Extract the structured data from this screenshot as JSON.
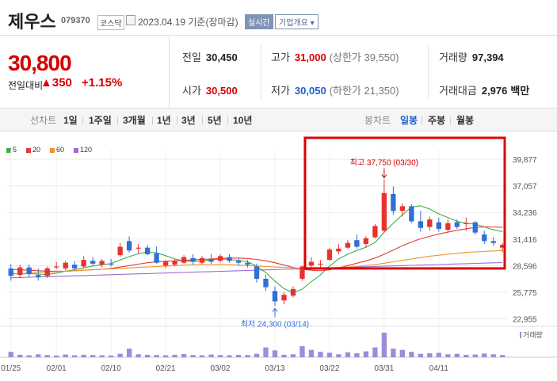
{
  "header": {
    "name": "제우스",
    "code": "079370",
    "market": "코스닥",
    "date_text": "2023.04.19 기준(장마감)",
    "realtime": "실시간",
    "company": "기업개요 ▾"
  },
  "price": {
    "current": "30,800",
    "diff_label": "전일대비",
    "diff": "▲350",
    "rate": "+1.15%"
  },
  "info": {
    "prev_label": "전일",
    "prev": "30,450",
    "high_label": "고가",
    "high": "31,000",
    "high_sub": "(상한가 39,550)",
    "vol_label": "거래량",
    "vol": "97,394",
    "open_label": "시가",
    "open": "30,500",
    "low_label": "저가",
    "low": "30,050",
    "low_sub": "(하한가 21,350)",
    "amt_label": "거래대금",
    "amt": "2,976",
    "amt_unit": "백만"
  },
  "tabs": {
    "line_label": "선차트",
    "d1": "1일",
    "w1": "1주일",
    "m3": "3개월",
    "y1": "1년",
    "y3": "3년",
    "y5": "5년",
    "y10": "10년",
    "candle_label": "봉차트",
    "daily": "일봉",
    "weekly": "주봉",
    "monthly": "월봉"
  },
  "chart_data": {
    "type": "candlestick",
    "legend": [
      {
        "label": "5",
        "color": "#3fae49"
      },
      {
        "label": "20",
        "color": "#e23b3b"
      },
      {
        "label": "60",
        "color": "#f0932b"
      },
      {
        "label": "120",
        "color": "#a06ad1"
      }
    ],
    "y_ticks": [
      39877,
      37057,
      34236,
      31416,
      28596,
      25775,
      22955
    ],
    "y_tick_labels": [
      "39,877",
      "37,057",
      "34,236",
      "31,416",
      "28,596",
      "25,775",
      "22,955"
    ],
    "ylim": [
      22400,
      40900
    ],
    "x_labels": [
      "01/25",
      "02/01",
      "02/10",
      "02/21",
      "03/02",
      "03/13",
      "03/22",
      "03/31",
      "04/11"
    ],
    "x_label_index": [
      0,
      5,
      11,
      17,
      23,
      29,
      35,
      41,
      47
    ],
    "volume_label": "거래량",
    "high_annotation": "최고 37,750 (03/30)",
    "low_annotation": "최저 24,300 (03/14)",
    "candles": [
      [
        28300,
        28750,
        27000,
        27500
      ],
      [
        27600,
        28700,
        27300,
        28400
      ],
      [
        28400,
        28700,
        27400,
        27700
      ],
      [
        27600,
        28300,
        27000,
        27400
      ],
      [
        27500,
        28500,
        27300,
        28300
      ],
      [
        28400,
        29000,
        28200,
        28500
      ],
      [
        28300,
        29100,
        28100,
        28900
      ],
      [
        28700,
        29100,
        28100,
        28300
      ],
      [
        28500,
        29600,
        28300,
        29200
      ],
      [
        29100,
        29500,
        28600,
        28800
      ],
      [
        28700,
        29300,
        28400,
        29100
      ],
      [
        28800,
        29300,
        28500,
        28700
      ],
      [
        29700,
        31000,
        29500,
        30600
      ],
      [
        31200,
        31700,
        30000,
        30200
      ],
      [
        30400,
        30900,
        29900,
        30500
      ],
      [
        30500,
        30800,
        29700,
        29800
      ],
      [
        29900,
        30600,
        28800,
        28900
      ],
      [
        28600,
        29200,
        28300,
        29000
      ],
      [
        28700,
        29300,
        28500,
        29100
      ],
      [
        28900,
        29700,
        28800,
        29500
      ],
      [
        29400,
        29800,
        28700,
        29000
      ],
      [
        28900,
        29600,
        28700,
        29400
      ],
      [
        29300,
        29800,
        28800,
        29000
      ],
      [
        29100,
        29800,
        28900,
        29600
      ],
      [
        29500,
        29800,
        28900,
        29100
      ],
      [
        29100,
        29400,
        28600,
        28900
      ],
      [
        28900,
        29200,
        28400,
        28700
      ],
      [
        28500,
        28800,
        26800,
        27200
      ],
      [
        27200,
        27600,
        25900,
        26300
      ],
      [
        25900,
        26400,
        24300,
        24800
      ],
      [
        24900,
        25800,
        24500,
        25500
      ],
      [
        25400,
        26400,
        25200,
        26100
      ],
      [
        27200,
        28600,
        27000,
        28500
      ],
      [
        28600,
        29500,
        28300,
        29000
      ],
      [
        28700,
        29200,
        28400,
        28800
      ],
      [
        29200,
        30500,
        29100,
        30300
      ],
      [
        30100,
        30900,
        29800,
        30400
      ],
      [
        30500,
        31300,
        30400,
        31000
      ],
      [
        31300,
        31900,
        30400,
        30600
      ],
      [
        30900,
        31700,
        30500,
        31500
      ],
      [
        31600,
        33000,
        31500,
        32800
      ],
      [
        32300,
        37750,
        32100,
        36300
      ],
      [
        36200,
        37000,
        34000,
        34400
      ],
      [
        34400,
        35200,
        33800,
        34900
      ],
      [
        34900,
        35100,
        33100,
        33300
      ],
      [
        33300,
        34400,
        32200,
        32600
      ],
      [
        32700,
        33800,
        32300,
        33500
      ],
      [
        33200,
        33700,
        32200,
        32500
      ],
      [
        32400,
        33500,
        32200,
        33100
      ],
      [
        33200,
        33500,
        32500,
        32700
      ],
      [
        33000,
        33700,
        32300,
        33100
      ],
      [
        33200,
        33300,
        31900,
        32100
      ],
      [
        31900,
        32300,
        30900,
        31200
      ],
      [
        31200,
        31600,
        30700,
        31000
      ],
      [
        30500,
        31000,
        30050,
        30800
      ]
    ],
    "volumes": [
      22,
      10,
      8,
      12,
      9,
      7,
      11,
      8,
      10,
      9,
      8,
      7,
      14,
      35,
      12,
      10,
      9,
      8,
      10,
      13,
      9,
      8,
      11,
      9,
      8,
      10,
      9,
      14,
      40,
      28,
      10,
      12,
      45,
      30,
      22,
      18,
      12,
      20,
      16,
      24,
      40,
      100,
      35,
      30,
      22,
      14,
      16,
      18,
      12,
      14,
      10,
      11,
      15,
      12,
      9
    ],
    "series": [
      {
        "name": "5",
        "values": [
          27800,
          27700,
          27750,
          27700,
          27650,
          27800,
          28000,
          28150,
          28350,
          28550,
          28700,
          28800,
          29200,
          29550,
          29850,
          30050,
          29950,
          29650,
          29300,
          29100,
          29050,
          29100,
          29200,
          29300,
          29250,
          29150,
          29000,
          28550,
          27850,
          26950,
          26150,
          25700,
          26100,
          26900,
          27600,
          28550,
          29300,
          29800,
          30200,
          30550,
          31050,
          32150,
          33100,
          34000,
          34800,
          34950,
          34600,
          34100,
          33700,
          33300,
          33100,
          33000,
          32700,
          32400,
          32200
        ]
      },
      {
        "name": "20",
        "values": [
          28200,
          28150,
          28100,
          28050,
          28000,
          28000,
          28000,
          28050,
          28100,
          28150,
          28200,
          28300,
          28450,
          28600,
          28750,
          28900,
          29000,
          29050,
          29100,
          29150,
          29200,
          29250,
          29300,
          29350,
          29400,
          29400,
          29350,
          29250,
          29100,
          28900,
          28650,
          28400,
          28200,
          28100,
          28050,
          28150,
          28350,
          28600,
          28850,
          29100,
          29400,
          29800,
          30250,
          30700,
          31100,
          31450,
          31700,
          31950,
          32150,
          32350,
          32500,
          32650,
          32700,
          32700,
          32650
        ]
      },
      {
        "name": "60",
        "values": [
          27700,
          27750,
          27800,
          27850,
          27900,
          27950,
          28000,
          28050,
          28100,
          28150,
          28200,
          28250,
          28300,
          28350,
          28400,
          28450,
          28500,
          28550,
          28600,
          28650,
          28700,
          28700,
          28700,
          28700,
          28700,
          28650,
          28600,
          28550,
          28500,
          28450,
          28400,
          28350,
          28300,
          28300,
          28300,
          28350,
          28400,
          28450,
          28500,
          28600,
          28700,
          28850,
          29000,
          29150,
          29300,
          29450,
          29600,
          29700,
          29800,
          29900,
          30000,
          30050,
          30100,
          30150,
          30200
        ]
      },
      {
        "name": "120",
        "values": [
          27300,
          27330,
          27360,
          27390,
          27420,
          27450,
          27480,
          27510,
          27540,
          27570,
          27600,
          27630,
          27660,
          27690,
          27720,
          27750,
          27780,
          27810,
          27840,
          27870,
          27900,
          27930,
          27960,
          27990,
          28020,
          28050,
          28080,
          28110,
          28140,
          28170,
          28200,
          28230,
          28260,
          28290,
          28320,
          28350,
          28380,
          28410,
          28440,
          28470,
          28500,
          28530,
          28560,
          28590,
          28620,
          28650,
          28680,
          28710,
          28740,
          28770,
          28800,
          28830,
          28860,
          28890,
          28920
        ]
      }
    ]
  }
}
